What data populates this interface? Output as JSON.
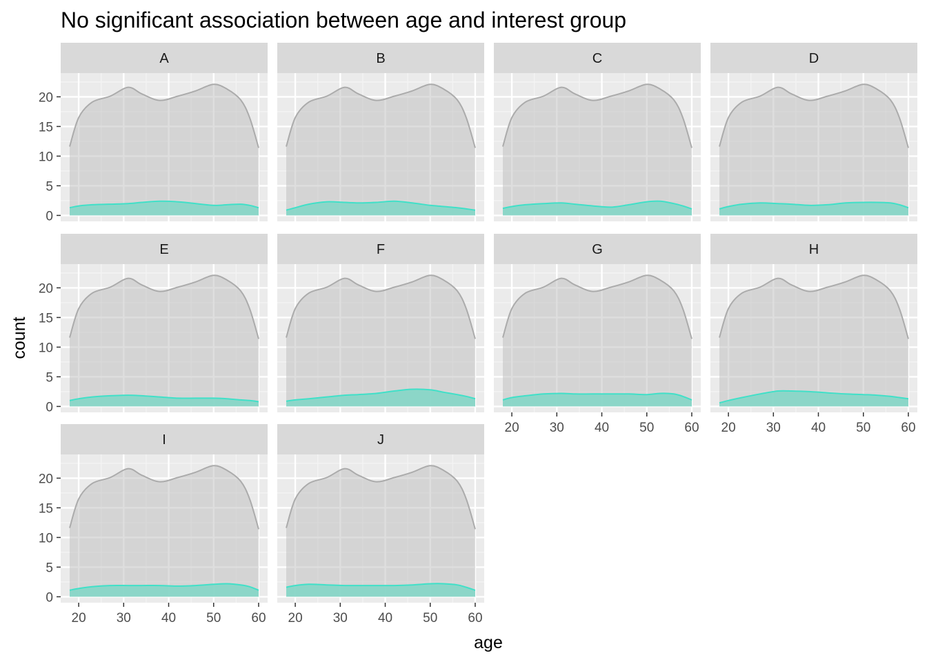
{
  "chart_data": {
    "type": "area",
    "title": "No significant association between age and interest group",
    "xlabel": "age",
    "ylabel": "count",
    "xlim": [
      16,
      62
    ],
    "ylim": [
      -1,
      24
    ],
    "x_ticks": [
      20,
      30,
      40,
      50,
      60
    ],
    "y_ticks": [
      0,
      5,
      10,
      15,
      20
    ],
    "grid": true,
    "layout": "facet_wrap, 4 columns",
    "colors": {
      "overall_fill": "#bdbdbd",
      "overall_line": "#ababab",
      "group_fill": "#7fd6c6",
      "group_line": "#40e0c8",
      "panel_bg": "#ebebeb",
      "strip_bg": "#d9d9d9"
    },
    "x": [
      18,
      20,
      23,
      27,
      31,
      34,
      38,
      42,
      46,
      50,
      53,
      56,
      58,
      60
    ],
    "overall": [
      11.6,
      16.5,
      19.1,
      20.1,
      21.6,
      20.5,
      19.4,
      20.1,
      21.0,
      22.1,
      21.3,
      19.5,
      16.5,
      11.4
    ],
    "facets": [
      {
        "label": "A",
        "values": [
          1.3,
          1.6,
          1.8,
          1.9,
          2.0,
          2.2,
          2.4,
          2.3,
          2.0,
          1.7,
          1.8,
          1.9,
          1.7,
          1.3
        ]
      },
      {
        "label": "B",
        "values": [
          0.9,
          1.3,
          1.9,
          2.3,
          2.2,
          2.1,
          2.2,
          2.4,
          2.1,
          1.7,
          1.5,
          1.3,
          1.1,
          0.9
        ]
      },
      {
        "label": "C",
        "values": [
          1.2,
          1.5,
          1.8,
          2.0,
          2.1,
          1.9,
          1.6,
          1.4,
          1.8,
          2.3,
          2.4,
          2.0,
          1.6,
          1.1
        ]
      },
      {
        "label": "D",
        "values": [
          1.1,
          1.5,
          1.9,
          2.1,
          2.0,
          1.9,
          1.7,
          1.8,
          2.1,
          2.2,
          2.2,
          2.1,
          1.8,
          1.3
        ]
      },
      {
        "label": "E",
        "values": [
          1.0,
          1.3,
          1.6,
          1.8,
          1.9,
          1.8,
          1.6,
          1.4,
          1.4,
          1.4,
          1.3,
          1.1,
          1.0,
          0.8
        ]
      },
      {
        "label": "F",
        "values": [
          0.9,
          1.1,
          1.3,
          1.6,
          1.9,
          2.0,
          2.2,
          2.6,
          2.9,
          2.8,
          2.4,
          2.0,
          1.7,
          1.3
        ]
      },
      {
        "label": "G",
        "values": [
          1.1,
          1.5,
          1.8,
          2.1,
          2.2,
          2.1,
          2.1,
          2.1,
          2.1,
          2.0,
          2.2,
          2.1,
          1.7,
          1.1
        ]
      },
      {
        "label": "H",
        "values": [
          0.6,
          1.0,
          1.5,
          2.1,
          2.6,
          2.6,
          2.5,
          2.3,
          2.1,
          2.0,
          1.9,
          1.7,
          1.5,
          1.3
        ]
      },
      {
        "label": "I",
        "values": [
          1.1,
          1.4,
          1.7,
          1.9,
          1.9,
          1.9,
          1.9,
          1.8,
          1.9,
          2.1,
          2.2,
          2.0,
          1.7,
          1.1
        ]
      },
      {
        "label": "J",
        "values": [
          1.6,
          1.9,
          2.1,
          2.0,
          1.9,
          1.9,
          1.9,
          1.9,
          2.0,
          2.2,
          2.2,
          2.0,
          1.6,
          1.1
        ]
      }
    ]
  }
}
